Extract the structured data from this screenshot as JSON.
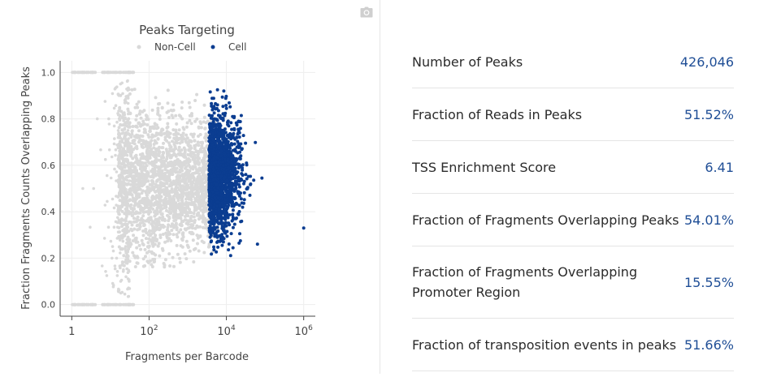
{
  "chart_data": {
    "type": "scatter",
    "title": "Peaks Targeting",
    "xlabel": "Fragments per Barcode",
    "ylabel": "Fraction Fragments Counts Overlapping Peaks",
    "x_scale": "log",
    "xlim": [
      0.5,
      2000000
    ],
    "ylim": [
      -0.05,
      1.05
    ],
    "x_ticks": [
      {
        "value": 1,
        "label": "1",
        "exp": ""
      },
      {
        "value": 100,
        "label": "10",
        "exp": "2"
      },
      {
        "value": 10000,
        "label": "10",
        "exp": "4"
      },
      {
        "value": 1000000,
        "label": "10",
        "exp": "6"
      }
    ],
    "y_ticks": [
      {
        "value": 0.0,
        "label": "0.0"
      },
      {
        "value": 0.2,
        "label": "0.2"
      },
      {
        "value": 0.4,
        "label": "0.4"
      },
      {
        "value": 0.6,
        "label": "0.6"
      },
      {
        "value": 0.8,
        "label": "0.8"
      },
      {
        "value": 1.0,
        "label": "1.0"
      }
    ],
    "grid": true,
    "legend_position": "top-center",
    "series": [
      {
        "name": "Non-Cell",
        "color": "#d9d9d9"
      },
      {
        "name": "Cell",
        "color": "#0b3d91"
      }
    ]
  },
  "metrics": [
    {
      "label": "Number of Peaks",
      "value": "426,046"
    },
    {
      "label": "Fraction of Reads in Peaks",
      "value": "51.52%"
    },
    {
      "label": "TSS Enrichment Score",
      "value": "6.41"
    },
    {
      "label": "Fraction of Fragments Overlapping Peaks",
      "value": "54.01%"
    },
    {
      "label": "Fraction of Fragments Overlapping Promoter Region",
      "value": "15.55%"
    },
    {
      "label": "Fraction of transposition events in peaks",
      "value": "51.66%"
    }
  ],
  "icons": {
    "camera": "camera-icon"
  }
}
